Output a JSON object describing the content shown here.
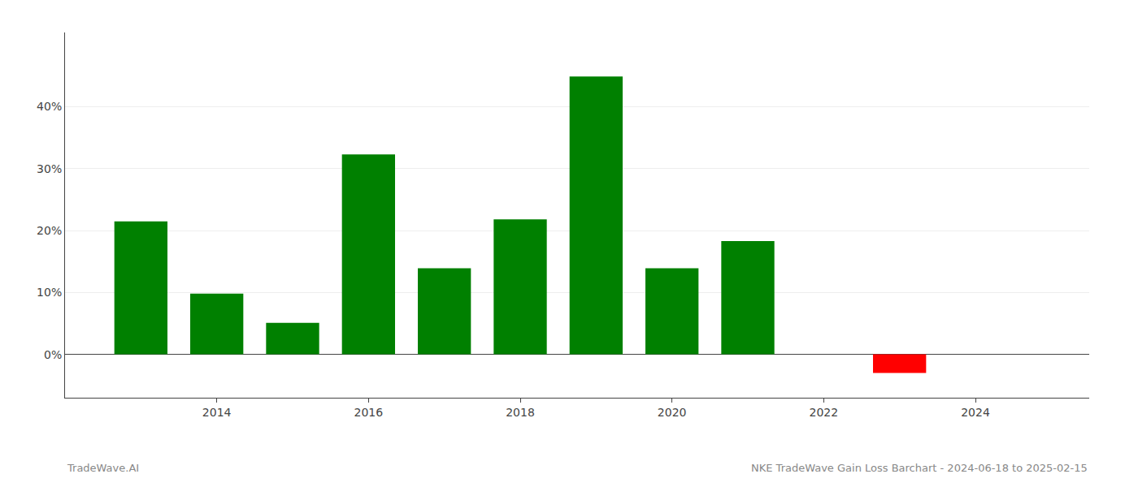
{
  "chart_data": {
    "type": "bar",
    "x": [
      2013,
      2014,
      2015,
      2016,
      2017,
      2018,
      2019,
      2020,
      2021,
      2022,
      2023
    ],
    "values": [
      0.215,
      0.098,
      0.051,
      0.323,
      0.139,
      0.218,
      0.449,
      0.139,
      0.183,
      0.0,
      -0.03
    ],
    "colors": [
      "#008000",
      "#008000",
      "#008000",
      "#008000",
      "#008000",
      "#008000",
      "#008000",
      "#008000",
      "#008000",
      "#008000",
      "#FF0000"
    ],
    "xlim": [
      2012.0,
      2025.5
    ],
    "xticks": [
      2014,
      2016,
      2018,
      2020,
      2022,
      2024
    ],
    "ylim": [
      -0.07,
      0.52
    ],
    "yticks": [
      {
        "value": 0.0,
        "label": "0%"
      },
      {
        "value": 0.1,
        "label": "10%"
      },
      {
        "value": 0.2,
        "label": "20%"
      },
      {
        "value": 0.3,
        "label": "30%"
      },
      {
        "value": 0.4,
        "label": "40%"
      }
    ],
    "grid": true,
    "annotations": [
      "TradeWave.AI",
      "NKE TradeWave Gain Loss Barchart - 2024-06-18 to 2025-02-15"
    ]
  }
}
